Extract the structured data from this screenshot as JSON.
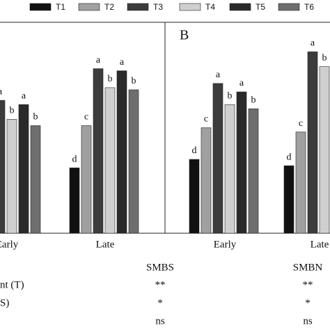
{
  "legend": {
    "names": [
      "T1",
      "T2",
      "T3",
      "T4",
      "T5",
      "T6"
    ],
    "colors": [
      "#111111",
      "#a0a0a0",
      "#3c3c3c",
      "#cfcfcf",
      "#2a2a2a",
      "#6e6e6e"
    ]
  },
  "chart_data": [
    {
      "type": "bar",
      "categories": [
        "Early",
        "Late"
      ],
      "ylim": [
        0,
        100
      ],
      "series": [
        {
          "values": [
            null,
            31
          ],
          "letters": [
            null,
            "d"
          ]
        },
        {
          "values": [
            null,
            51
          ],
          "letters": [
            null,
            "c"
          ]
        },
        {
          "values": [
            63,
            78
          ],
          "letters": [
            "a",
            "a"
          ]
        },
        {
          "values": [
            54,
            69
          ],
          "letters": [
            "b",
            "b"
          ]
        },
        {
          "values": [
            61,
            77
          ],
          "letters": [
            "a",
            "a"
          ]
        },
        {
          "values": [
            51,
            68
          ],
          "letters": [
            "b",
            "b"
          ]
        }
      ]
    },
    {
      "type": "bar",
      "panel_label": "B",
      "categories": [
        "Early",
        "Late"
      ],
      "ylim": [
        0,
        100
      ],
      "series": [
        {
          "values": [
            35,
            32
          ],
          "letters": [
            "d",
            "d"
          ]
        },
        {
          "values": [
            50,
            48
          ],
          "letters": [
            "c",
            "c"
          ]
        },
        {
          "values": [
            71,
            86
          ],
          "letters": [
            "a",
            "a"
          ]
        },
        {
          "values": [
            61,
            79
          ],
          "letters": [
            "b",
            "b"
          ]
        },
        {
          "values": [
            67,
            null
          ],
          "letters": [
            "a",
            null
          ]
        },
        {
          "values": [
            59,
            null
          ],
          "letters": [
            "b",
            null
          ]
        }
      ]
    }
  ],
  "stats": {
    "columns": [
      "SMBS",
      "SMBN"
    ],
    "rows": [
      {
        "label": "nt (T)",
        "cells": [
          "**",
          "**"
        ]
      },
      {
        "label": "S)",
        "cells": [
          "*",
          "*"
        ]
      },
      {
        "cells": [
          "ns",
          "ns"
        ]
      }
    ]
  }
}
